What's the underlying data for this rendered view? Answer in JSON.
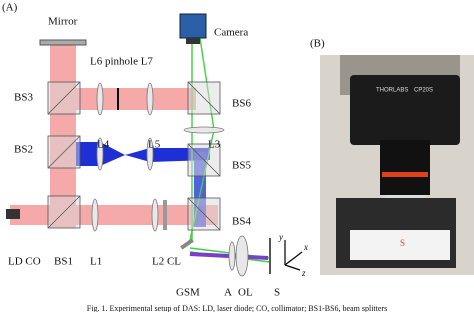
{
  "figure": {
    "panel_a": {
      "label": "(A)",
      "labels": [
        "Mirror",
        "Camera",
        "L6 pinhole L7",
        "BS3",
        "BS6",
        "L4",
        "L5",
        "L3",
        "BS2",
        "BS5",
        "BS4",
        "LD CO",
        "BS1",
        "L1",
        "L2 CL",
        "GSM",
        "A",
        "OL",
        "S",
        "y",
        "x",
        "z"
      ]
    },
    "panel_b": {
      "label": "(B)",
      "labels": [
        "THORLABS",
        "CP20S",
        "S"
      ]
    },
    "caption": "Fig. 1. Experimental setup of DAS: LD, laser diode; CO, collimator; BS1-BS6, beam splitters"
  }
}
